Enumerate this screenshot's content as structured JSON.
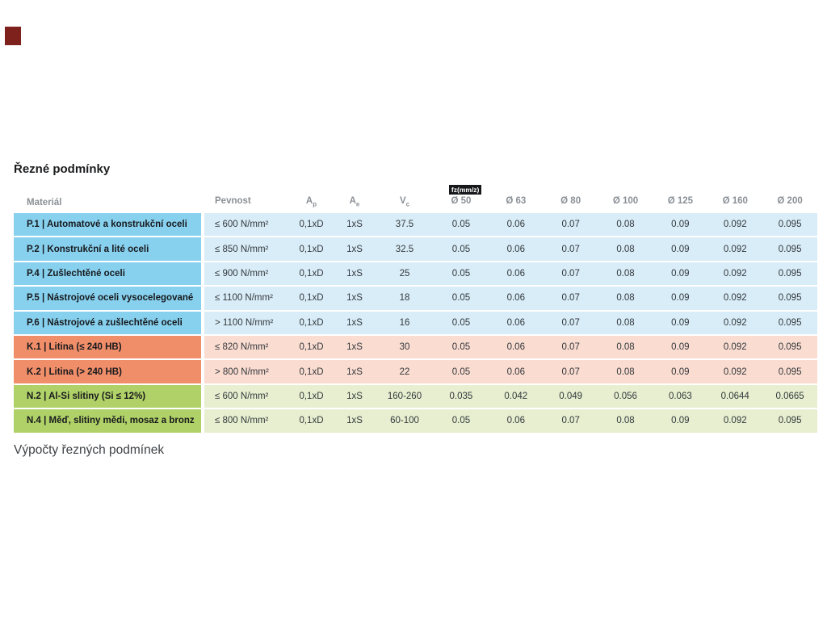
{
  "page": {
    "title": "Řezné podmínky",
    "footer": "Výpočty řezných podmínek"
  },
  "table": {
    "fz_badge_label": "fz(mm/z)",
    "headers": {
      "material": "Materiál",
      "pevnost": "Pevnost",
      "ap": {
        "base": "A",
        "sub": "p"
      },
      "ae": {
        "base": "A",
        "sub": "e"
      },
      "vc": {
        "base": "V",
        "sub": "c"
      },
      "diameters": [
        "Ø 50",
        "Ø 63",
        "Ø 80",
        "Ø 100",
        "Ø 125",
        "Ø 160",
        "Ø 200"
      ]
    },
    "rows": [
      {
        "group": "P",
        "material": "P.1 | Automatové a konstrukční oceli",
        "pevnost": "≤ 600 N/mm²",
        "ap": "0,1xD",
        "ae": "1xS",
        "vc": "37.5",
        "fz": [
          "0.05",
          "0.06",
          "0.07",
          "0.08",
          "0.09",
          "0.092",
          "0.095"
        ]
      },
      {
        "group": "P",
        "material": "P.2 | Konstrukční a lité oceli",
        "pevnost": "≤ 850 N/mm²",
        "ap": "0,1xD",
        "ae": "1xS",
        "vc": "32.5",
        "fz": [
          "0.05",
          "0.06",
          "0.07",
          "0.08",
          "0.09",
          "0.092",
          "0.095"
        ]
      },
      {
        "group": "P",
        "material": "P.4 | Zušlechtěné oceli",
        "pevnost": "≤ 900 N/mm²",
        "ap": "0,1xD",
        "ae": "1xS",
        "vc": "25",
        "fz": [
          "0.05",
          "0.06",
          "0.07",
          "0.08",
          "0.09",
          "0.092",
          "0.095"
        ]
      },
      {
        "group": "P",
        "material": "P.5 | Nástrojové oceli vysocelegované",
        "pevnost": "≤ 1100 N/mm²",
        "ap": "0,1xD",
        "ae": "1xS",
        "vc": "18",
        "fz": [
          "0.05",
          "0.06",
          "0.07",
          "0.08",
          "0.09",
          "0.092",
          "0.095"
        ]
      },
      {
        "group": "P",
        "material": "P.6 | Nástrojové a zušlechtěné oceli",
        "pevnost": "> 1100 N/mm²",
        "ap": "0,1xD",
        "ae": "1xS",
        "vc": "16",
        "fz": [
          "0.05",
          "0.06",
          "0.07",
          "0.08",
          "0.09",
          "0.092",
          "0.095"
        ]
      },
      {
        "group": "K",
        "material": "K.1 | Litina (≤ 240 HB)",
        "pevnost": "≤ 820 N/mm²",
        "ap": "0,1xD",
        "ae": "1xS",
        "vc": "30",
        "fz": [
          "0.05",
          "0.06",
          "0.07",
          "0.08",
          "0.09",
          "0.092",
          "0.095"
        ]
      },
      {
        "group": "K",
        "material": "K.2 | Litina (> 240 HB)",
        "pevnost": "> 800 N/mm²",
        "ap": "0,1xD",
        "ae": "1xS",
        "vc": "22",
        "fz": [
          "0.05",
          "0.06",
          "0.07",
          "0.08",
          "0.09",
          "0.092",
          "0.095"
        ]
      },
      {
        "group": "N",
        "material": "N.2 | Al-Si slitiny (Si ≤ 12%)",
        "pevnost": "≤ 600 N/mm²",
        "ap": "0,1xD",
        "ae": "1xS",
        "vc": "160-260",
        "fz": [
          "0.035",
          "0.042",
          "0.049",
          "0.056",
          "0.063",
          "0.0644",
          "0.0665"
        ]
      },
      {
        "group": "N",
        "material": "N.4 | Měď, slitiny mědi, mosaz a bronz",
        "pevnost": "≤ 800 N/mm²",
        "ap": "0,1xD",
        "ae": "1xS",
        "vc": "60-100",
        "fz": [
          "0.05",
          "0.06",
          "0.07",
          "0.08",
          "0.09",
          "0.092",
          "0.095"
        ]
      }
    ],
    "colors": {
      "steel_material": "#87d1ef",
      "steel_row": "#d9edf8",
      "cast_iron_material": "#f08e6a",
      "cast_iron_row": "#fadcd1",
      "nonferrous_material": "#b0d167",
      "nonferrous_row": "#e7efd0",
      "fz_badge_bg": "#17181b",
      "red_mark": "#7e211d"
    }
  }
}
